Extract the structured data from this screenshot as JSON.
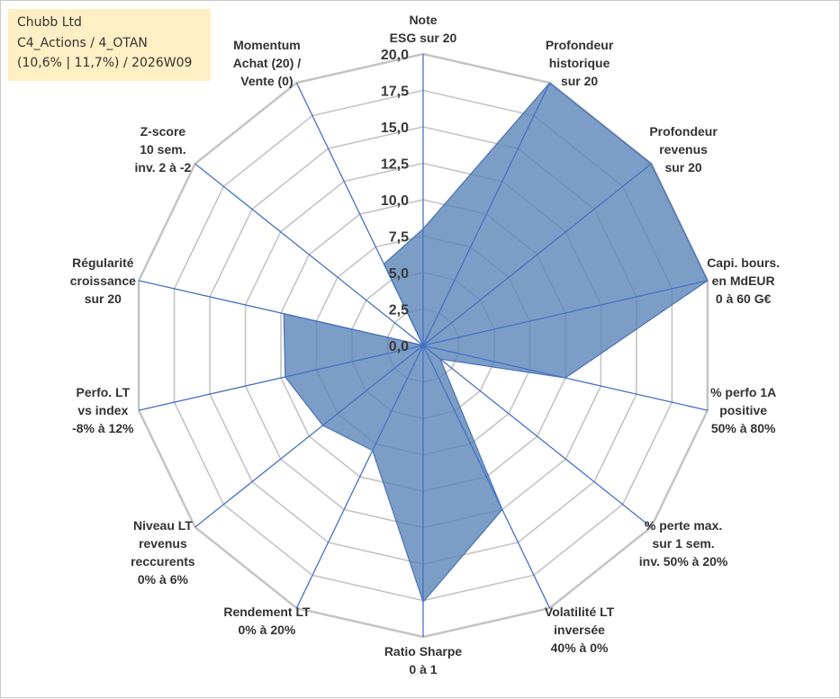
{
  "header": {
    "company": "Chubb Ltd",
    "category": "C4_Actions / 4_OTAN",
    "period": "(10,6% | 11,7%) / 2026W09"
  },
  "chart_data": {
    "type": "radar",
    "title": "Chubb Ltd",
    "range": [
      0,
      20
    ],
    "ticks": [
      "0,0",
      "2,5",
      "5,0",
      "7,5",
      "10,0",
      "12,5",
      "15,0",
      "17,5",
      "20,0"
    ],
    "tick_values": [
      0,
      2.5,
      5,
      7.5,
      10,
      12.5,
      15,
      17.5,
      20
    ],
    "grid": true,
    "colors": {
      "fill": "#5b84b6",
      "stroke": "#4a72b8",
      "axis": "#4472c4",
      "grid": "#c4c4c4"
    },
    "axes": [
      {
        "label": [
          "Note",
          "ESG sur 20"
        ],
        "value": 8.0
      },
      {
        "label": [
          "Profondeur",
          "historique",
          "sur 20"
        ],
        "value": 20.0
      },
      {
        "label": [
          "Profondeur",
          "revenus",
          "sur 20"
        ],
        "value": 20.0
      },
      {
        "label": [
          "Capi. bours.",
          "en MdEUR",
          "0 à 60 G€"
        ],
        "value": 20.0
      },
      {
        "label": [
          "% perfo 1A",
          "positive",
          "50% à 80%"
        ],
        "value": 10.0
      },
      {
        "label": [
          "% perte max.",
          "sur 1 sem.",
          "inv. 50% à 20%"
        ],
        "value": 1.5
      },
      {
        "label": [
          "Volatilité LT",
          "inversée",
          "40% à 0%"
        ],
        "value": 12.5
      },
      {
        "label": [
          "Ratio Sharpe",
          "0 à 1"
        ],
        "value": 17.6
      },
      {
        "label": [
          "Rendement LT",
          "0% à 20%"
        ],
        "value": 8.0
      },
      {
        "label": [
          "Niveau LT",
          "revenus",
          "reccurents",
          "0% à 6%"
        ],
        "value": 8.8
      },
      {
        "label": [
          "Perfo. LT",
          "vs index",
          "-8% à 12%"
        ],
        "value": 9.7
      },
      {
        "label": [
          "Régularité",
          "croissance",
          "sur 20"
        ],
        "value": 9.8
      },
      {
        "label": [
          "Z-score",
          "10 sem.",
          "inv. 2 à -2"
        ],
        "value": 0.0
      },
      {
        "label": [
          "Momentum",
          "Achat (20) /",
          "Vente (0)"
        ],
        "value": 6.2
      }
    ]
  }
}
